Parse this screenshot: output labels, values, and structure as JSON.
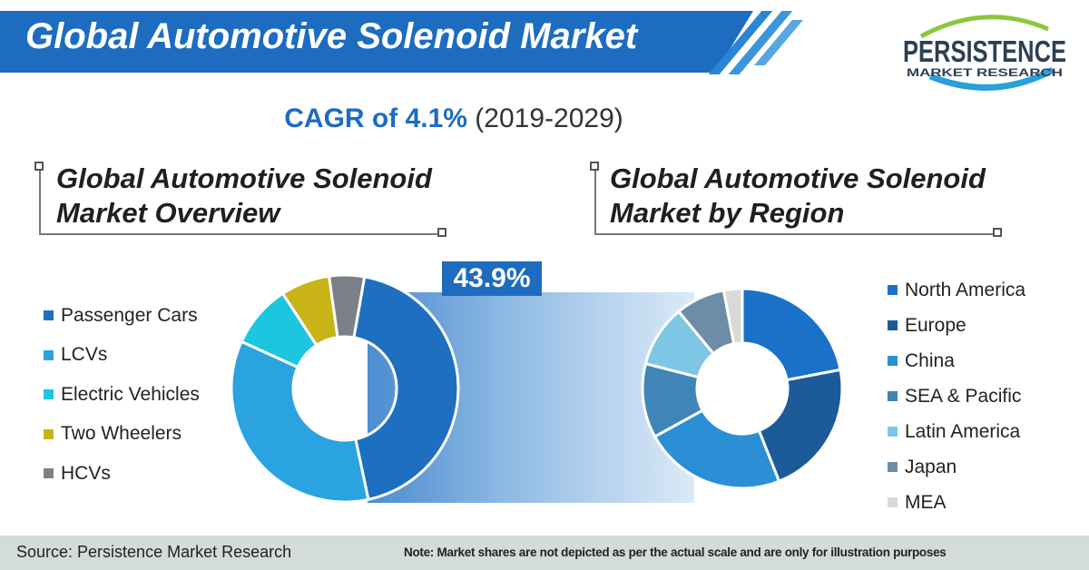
{
  "header": {
    "title": "Global Automotive Solenoid Market",
    "cagr_label": "CAGR of 4.1%",
    "cagr_period": "(2019-2029)"
  },
  "logo": {
    "name": "PERSISTENCE",
    "sub": "MARKET RESEARCH"
  },
  "left_section": {
    "heading_line1": "Global Automotive Solenoid",
    "heading_line2": "Market Overview",
    "callout": "43.9%"
  },
  "right_section": {
    "heading_line1": "Global Automotive Solenoid",
    "heading_line2": "Market by Region"
  },
  "footer": {
    "source": "Source: Persistence Market Research",
    "note": "Note: Market shares are not depicted as per the actual scale and are only for illustration purposes"
  },
  "chart_data": [
    {
      "type": "pie",
      "title": "Global Automotive Solenoid Market Overview",
      "legend": "left",
      "categories": [
        "Passenger Cars",
        "LCVs",
        "Electric Vehicles",
        "Two Wheelers",
        "HCVs"
      ],
      "values": [
        43.9,
        35.1,
        9,
        7,
        5
      ],
      "colors": [
        "#1e6fc0",
        "#2aa3e0",
        "#1dc6df",
        "#c8b416",
        "#7b8088"
      ],
      "labeled_value": "43.9%"
    },
    {
      "type": "pie",
      "title": "Global Automotive Solenoid Market by Region",
      "legend": "right",
      "categories": [
        "North America",
        "Europe",
        "China",
        "SEA & Pacific",
        "Latin America",
        "Japan",
        "MEA"
      ],
      "values": [
        22,
        22,
        23,
        12,
        10,
        8,
        3
      ],
      "colors": [
        "#1a72c8",
        "#1c5a9a",
        "#2b8fd6",
        "#3f86b6",
        "#7ec6e6",
        "#6d8da6",
        "#d9d9d9"
      ]
    }
  ]
}
